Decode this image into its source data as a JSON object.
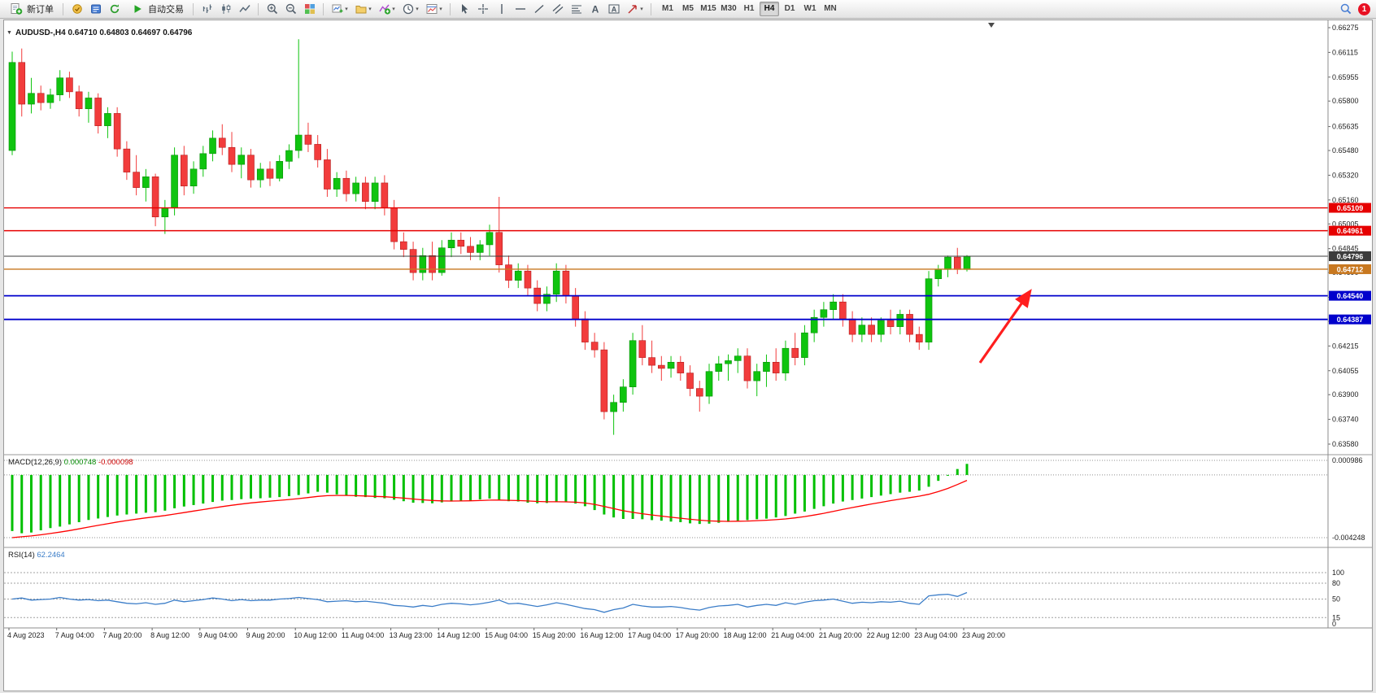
{
  "app": {
    "window_badge": "1"
  },
  "toolbar": {
    "new_order_label": "新订单",
    "auto_trading_label": "自动交易",
    "timeframes": [
      "M1",
      "M5",
      "M15",
      "M30",
      "H1",
      "H4",
      "D1",
      "W1",
      "MN"
    ],
    "active_timeframe": "H4"
  },
  "chart": {
    "title": "AUDUSD-,H4",
    "open": "0.64710",
    "high": "0.64803",
    "low": "0.64697",
    "close": "0.64796",
    "price_axis_labels": [
      "0.66275",
      "0.66115",
      "0.65955",
      "0.65800",
      "0.65635",
      "0.65480",
      "0.65320",
      "0.65160",
      "0.65005",
      "0.64845",
      "0.64690",
      "0.64530",
      "0.64375",
      "0.64215",
      "0.64055",
      "0.63900",
      "0.63740",
      "0.63580"
    ],
    "levels": [
      {
        "value": 0.65109,
        "label": "0.65109",
        "color": "#e60000",
        "width": 1.4
      },
      {
        "value": 0.64961,
        "label": "0.64961",
        "color": "#e60000",
        "width": 1.4
      },
      {
        "value": 0.64796,
        "label": "0.64796",
        "color": "#3c3c3c",
        "width": 1
      },
      {
        "value": 0.64712,
        "label": "0.64712",
        "color": "#c87820",
        "width": 1.4
      },
      {
        "value": 0.6454,
        "label": "0.64540",
        "color": "#0000cc",
        "width": 1.8
      },
      {
        "value": 0.64387,
        "label": "0.64387",
        "color": "#0000cc",
        "width": 1.8
      }
    ],
    "arrow_color": "#ff1e1e"
  },
  "indicators": {
    "macd": {
      "name": "MACD(12,26,9)",
      "value_main": "0.000748",
      "value_signal": "-0.000098",
      "axis_max": "0.000986",
      "axis_min": "-0.004248"
    },
    "rsi": {
      "name": "RSI(14)",
      "value": "62.2464",
      "axis_labels": [
        "100",
        "80",
        "50",
        "15",
        "0"
      ],
      "level_lines": [
        100,
        80,
        50,
        15
      ]
    }
  },
  "chart_data": {
    "type": "candlestick",
    "symbol": "AUDUSD-",
    "timeframe": "H4",
    "title": "AUDUSD-,H4 0.64710 0.64803 0.64697 0.64796",
    "x_labels": [
      "4 Aug 2023",
      "7 Aug 04:00",
      "7 Aug 20:00",
      "8 Aug 12:00",
      "9 Aug 04:00",
      "9 Aug 20:00",
      "10 Aug 12:00",
      "11 Aug 04:00",
      "13 Aug 23:00",
      "14 Aug 12:00",
      "15 Aug 04:00",
      "15 Aug 20:00",
      "16 Aug 12:00",
      "17 Aug 04:00",
      "17 Aug 20:00",
      "18 Aug 12:00",
      "21 Aug 04:00",
      "21 Aug 20:00",
      "22 Aug 12:00",
      "23 Aug 04:00",
      "23 Aug 20:00"
    ],
    "candles_per_label": 5,
    "y_range": {
      "min": 0.6358,
      "max": 0.66275
    },
    "up_color": "#0fc40f",
    "down_color": "#f23c3c",
    "candles": [
      [
        0.6548,
        0.6612,
        0.6545,
        0.6605
      ],
      [
        0.6605,
        0.6614,
        0.657,
        0.6578
      ],
      [
        0.6578,
        0.6595,
        0.6572,
        0.6585
      ],
      [
        0.6585,
        0.659,
        0.6574,
        0.6579
      ],
      [
        0.6579,
        0.6588,
        0.6575,
        0.6584
      ],
      [
        0.6584,
        0.66,
        0.658,
        0.6595
      ],
      [
        0.6595,
        0.6599,
        0.6582,
        0.6586
      ],
      [
        0.6586,
        0.659,
        0.657,
        0.6575
      ],
      [
        0.6575,
        0.6586,
        0.6566,
        0.6582
      ],
      [
        0.6582,
        0.6585,
        0.6559,
        0.6564
      ],
      [
        0.6564,
        0.6576,
        0.6556,
        0.6572
      ],
      [
        0.6572,
        0.6576,
        0.6544,
        0.6549
      ],
      [
        0.6549,
        0.6554,
        0.6529,
        0.6534
      ],
      [
        0.6534,
        0.6545,
        0.6519,
        0.6524
      ],
      [
        0.6524,
        0.6536,
        0.6515,
        0.6531
      ],
      [
        0.6531,
        0.6533,
        0.6499,
        0.6505
      ],
      [
        0.6505,
        0.6516,
        0.6494,
        0.6511
      ],
      [
        0.6511,
        0.655,
        0.6506,
        0.6545
      ],
      [
        0.6545,
        0.6551,
        0.6519,
        0.6525
      ],
      [
        0.6525,
        0.6541,
        0.652,
        0.6536
      ],
      [
        0.6536,
        0.6551,
        0.6531,
        0.6546
      ],
      [
        0.6546,
        0.6561,
        0.6541,
        0.6556
      ],
      [
        0.6556,
        0.6565,
        0.6545,
        0.655
      ],
      [
        0.655,
        0.656,
        0.6534,
        0.6539
      ],
      [
        0.6539,
        0.655,
        0.653,
        0.6545
      ],
      [
        0.6545,
        0.6549,
        0.6524,
        0.6529
      ],
      [
        0.6529,
        0.654,
        0.6524,
        0.6536
      ],
      [
        0.6536,
        0.6541,
        0.6525,
        0.653
      ],
      [
        0.653,
        0.6545,
        0.6528,
        0.6541
      ],
      [
        0.6541,
        0.6552,
        0.6536,
        0.6548
      ],
      [
        0.6548,
        0.662,
        0.6543,
        0.6558
      ],
      [
        0.6558,
        0.6566,
        0.6547,
        0.6552
      ],
      [
        0.6552,
        0.6558,
        0.6537,
        0.6542
      ],
      [
        0.6542,
        0.6549,
        0.6518,
        0.6523
      ],
      [
        0.6523,
        0.6534,
        0.6518,
        0.653
      ],
      [
        0.653,
        0.6535,
        0.6515,
        0.652
      ],
      [
        0.652,
        0.6531,
        0.6515,
        0.6527
      ],
      [
        0.6527,
        0.6531,
        0.651,
        0.6515
      ],
      [
        0.6515,
        0.6531,
        0.651,
        0.6527
      ],
      [
        0.6527,
        0.6532,
        0.6506,
        0.6511
      ],
      [
        0.6511,
        0.6516,
        0.6484,
        0.6489
      ],
      [
        0.6489,
        0.6495,
        0.6479,
        0.6484
      ],
      [
        0.6484,
        0.6489,
        0.6464,
        0.6469
      ],
      [
        0.6469,
        0.6485,
        0.6464,
        0.648
      ],
      [
        0.648,
        0.6489,
        0.6464,
        0.6469
      ],
      [
        0.6469,
        0.649,
        0.6467,
        0.6485
      ],
      [
        0.6485,
        0.6495,
        0.6479,
        0.649
      ],
      [
        0.649,
        0.6495,
        0.6481,
        0.6486
      ],
      [
        0.6486,
        0.6492,
        0.6477,
        0.6482
      ],
      [
        0.6482,
        0.649,
        0.6477,
        0.6487
      ],
      [
        0.6487,
        0.65,
        0.648,
        0.6495
      ],
      [
        0.6495,
        0.6518,
        0.6469,
        0.6474
      ],
      [
        0.6474,
        0.648,
        0.6459,
        0.6464
      ],
      [
        0.6464,
        0.6475,
        0.6459,
        0.647
      ],
      [
        0.647,
        0.6474,
        0.6454,
        0.6459
      ],
      [
        0.6459,
        0.6464,
        0.6444,
        0.6449
      ],
      [
        0.6449,
        0.646,
        0.6444,
        0.6455
      ],
      [
        0.6455,
        0.6475,
        0.645,
        0.647
      ],
      [
        0.647,
        0.6474,
        0.6449,
        0.6454
      ],
      [
        0.6454,
        0.6459,
        0.6434,
        0.6439
      ],
      [
        0.6439,
        0.6444,
        0.6419,
        0.6424
      ],
      [
        0.6424,
        0.643,
        0.6414,
        0.6419
      ],
      [
        0.6419,
        0.6424,
        0.6374,
        0.6379
      ],
      [
        0.6379,
        0.639,
        0.6364,
        0.6385
      ],
      [
        0.6385,
        0.64,
        0.6379,
        0.6395
      ],
      [
        0.6395,
        0.643,
        0.639,
        0.6425
      ],
      [
        0.6425,
        0.6435,
        0.6409,
        0.6414
      ],
      [
        0.6414,
        0.6425,
        0.6404,
        0.6409
      ],
      [
        0.6409,
        0.6415,
        0.6399,
        0.6407
      ],
      [
        0.6407,
        0.6415,
        0.6401,
        0.6411
      ],
      [
        0.6411,
        0.6415,
        0.6399,
        0.6404
      ],
      [
        0.6404,
        0.6409,
        0.6389,
        0.6394
      ],
      [
        0.6394,
        0.6399,
        0.6379,
        0.6389
      ],
      [
        0.6389,
        0.641,
        0.6384,
        0.6405
      ],
      [
        0.6405,
        0.6415,
        0.6399,
        0.641
      ],
      [
        0.641,
        0.6416,
        0.6399,
        0.6412
      ],
      [
        0.6412,
        0.642,
        0.6404,
        0.6415
      ],
      [
        0.6415,
        0.642,
        0.6394,
        0.6399
      ],
      [
        0.6399,
        0.641,
        0.6389,
        0.6405
      ],
      [
        0.6405,
        0.6416,
        0.6395,
        0.6411
      ],
      [
        0.6411,
        0.642,
        0.6399,
        0.6404
      ],
      [
        0.6404,
        0.6425,
        0.6399,
        0.642
      ],
      [
        0.642,
        0.643,
        0.6409,
        0.6414
      ],
      [
        0.6414,
        0.6435,
        0.6409,
        0.643
      ],
      [
        0.643,
        0.6445,
        0.6424,
        0.644
      ],
      [
        0.644,
        0.645,
        0.6434,
        0.6445
      ],
      [
        0.6445,
        0.6455,
        0.6439,
        0.645
      ],
      [
        0.645,
        0.6455,
        0.6434,
        0.6439
      ],
      [
        0.6439,
        0.6444,
        0.6424,
        0.6429
      ],
      [
        0.6429,
        0.644,
        0.6424,
        0.6435
      ],
      [
        0.6435,
        0.644,
        0.6424,
        0.6429
      ],
      [
        0.6429,
        0.644,
        0.6424,
        0.6438
      ],
      [
        0.6438,
        0.6445,
        0.6429,
        0.6434
      ],
      [
        0.6434,
        0.6445,
        0.6429,
        0.6442
      ],
      [
        0.6442,
        0.6445,
        0.6424,
        0.6429
      ],
      [
        0.6429,
        0.6434,
        0.6419,
        0.6424
      ],
      [
        0.6424,
        0.647,
        0.6419,
        0.6465
      ],
      [
        0.6465,
        0.6474,
        0.646,
        0.6471
      ],
      [
        0.6471,
        0.648,
        0.6466,
        0.6479
      ],
      [
        0.6479,
        0.6485,
        0.6468,
        0.6471
      ],
      [
        0.6471,
        0.64803,
        0.64697,
        0.64796
      ]
    ],
    "macd": {
      "range": {
        "min": -0.004248,
        "max": 0.000986
      },
      "histogram_color": "#00c000",
      "signal_color": "#ff0000",
      "signal_period": 9,
      "signal_start": -0.00425,
      "values": [
        -0.0038,
        -0.00395,
        -0.0039,
        -0.00375,
        -0.0036,
        -0.0035,
        -0.00335,
        -0.0032,
        -0.00305,
        -0.00295,
        -0.00285,
        -0.00275,
        -0.00268,
        -0.00262,
        -0.00256,
        -0.00252,
        -0.00242,
        -0.00226,
        -0.00214,
        -0.00204,
        -0.00194,
        -0.00183,
        -0.00174,
        -0.0017,
        -0.00164,
        -0.0016,
        -0.00158,
        -0.00154,
        -0.0015,
        -0.00144,
        -0.00136,
        -0.00125,
        -0.00114,
        -0.0012,
        -0.00132,
        -0.0014,
        -0.00148,
        -0.0015,
        -0.00156,
        -0.00158,
        -0.00168,
        -0.00178,
        -0.00188,
        -0.0019,
        -0.00192,
        -0.00186,
        -0.0018,
        -0.00174,
        -0.00172,
        -0.00166,
        -0.0016,
        -0.00168,
        -0.00178,
        -0.0018,
        -0.00188,
        -0.00192,
        -0.0019,
        -0.00182,
        -0.00184,
        -0.00194,
        -0.00212,
        -0.00238,
        -0.00268,
        -0.00288,
        -0.00298,
        -0.00298,
        -0.003,
        -0.00306,
        -0.0031,
        -0.00316,
        -0.0032,
        -0.00328,
        -0.00332,
        -0.0033,
        -0.00324,
        -0.00318,
        -0.0031,
        -0.00306,
        -0.003,
        -0.00296,
        -0.00288,
        -0.00278,
        -0.00262,
        -0.00248,
        -0.0023,
        -0.00212,
        -0.00194,
        -0.0018,
        -0.0017,
        -0.0016,
        -0.0015,
        -0.0014,
        -0.0013,
        -0.0012,
        -0.00114,
        -0.00106,
        -0.0008,
        -0.0004,
        -5e-05,
        0.0004,
        0.000748
      ]
    },
    "rsi": {
      "range": {
        "min": 0,
        "max": 100
      },
      "line_color": "#3b7dc8",
      "values": [
        50,
        52,
        48,
        49,
        50,
        53,
        50,
        48,
        49,
        47,
        48,
        45,
        42,
        41,
        43,
        40,
        42,
        48,
        45,
        47,
        49,
        52,
        50,
        47,
        49,
        47,
        48,
        48,
        50,
        51,
        53,
        51,
        49,
        45,
        46,
        47,
        45,
        46,
        44,
        42,
        38,
        37,
        35,
        38,
        36,
        40,
        42,
        41,
        39,
        41,
        44,
        48,
        41,
        42,
        39,
        36,
        39,
        43,
        40,
        36,
        32,
        30,
        25,
        30,
        33,
        40,
        37,
        35,
        35,
        36,
        34,
        31,
        29,
        34,
        37,
        38,
        40,
        35,
        38,
        40,
        38,
        43,
        40,
        44,
        47,
        48,
        50,
        46,
        42,
        44,
        43,
        45,
        44,
        46,
        42,
        40,
        56,
        58,
        59,
        55,
        62.2464
      ]
    }
  }
}
